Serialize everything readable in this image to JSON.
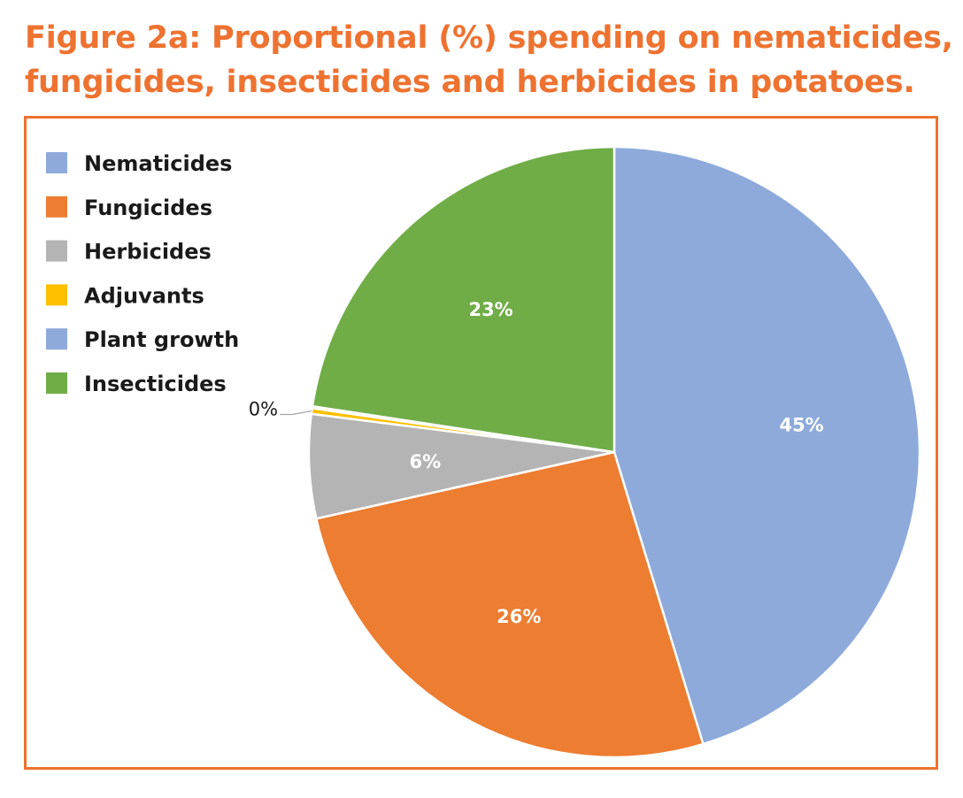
{
  "title_lines": [
    "Figure 2a: Proportional (%) spending on nematicides,",
    "fungicides, insecticides and herbicides in potatoes."
  ],
  "chart_data": {
    "type": "pie",
    "title": "Figure 2a: Proportional (%) spending on nematicides, fungicides, insecticides and herbicides in potatoes.",
    "legend_position": "top-left",
    "start_angle_deg": 0,
    "direction": "clockwise",
    "slices": [
      {
        "name": "Nematicides",
        "value": 45.3,
        "label": "45%",
        "color": "#8eaadb"
      },
      {
        "name": "Fungicides",
        "value": 26.2,
        "label": "26%",
        "color": "#ed7d31"
      },
      {
        "name": "Herbicides",
        "value": 5.5,
        "label": "6%",
        "color": "#b4b4b4"
      },
      {
        "name": "Adjuvants",
        "value": 0.3,
        "label": "0%",
        "color": "#ffc000"
      },
      {
        "name": "Plant growth",
        "value": 0.1,
        "label": "",
        "color": "#8eaadb"
      },
      {
        "name": "Insecticides",
        "value": 22.6,
        "label": "23%",
        "color": "#70ad47"
      }
    ]
  }
}
